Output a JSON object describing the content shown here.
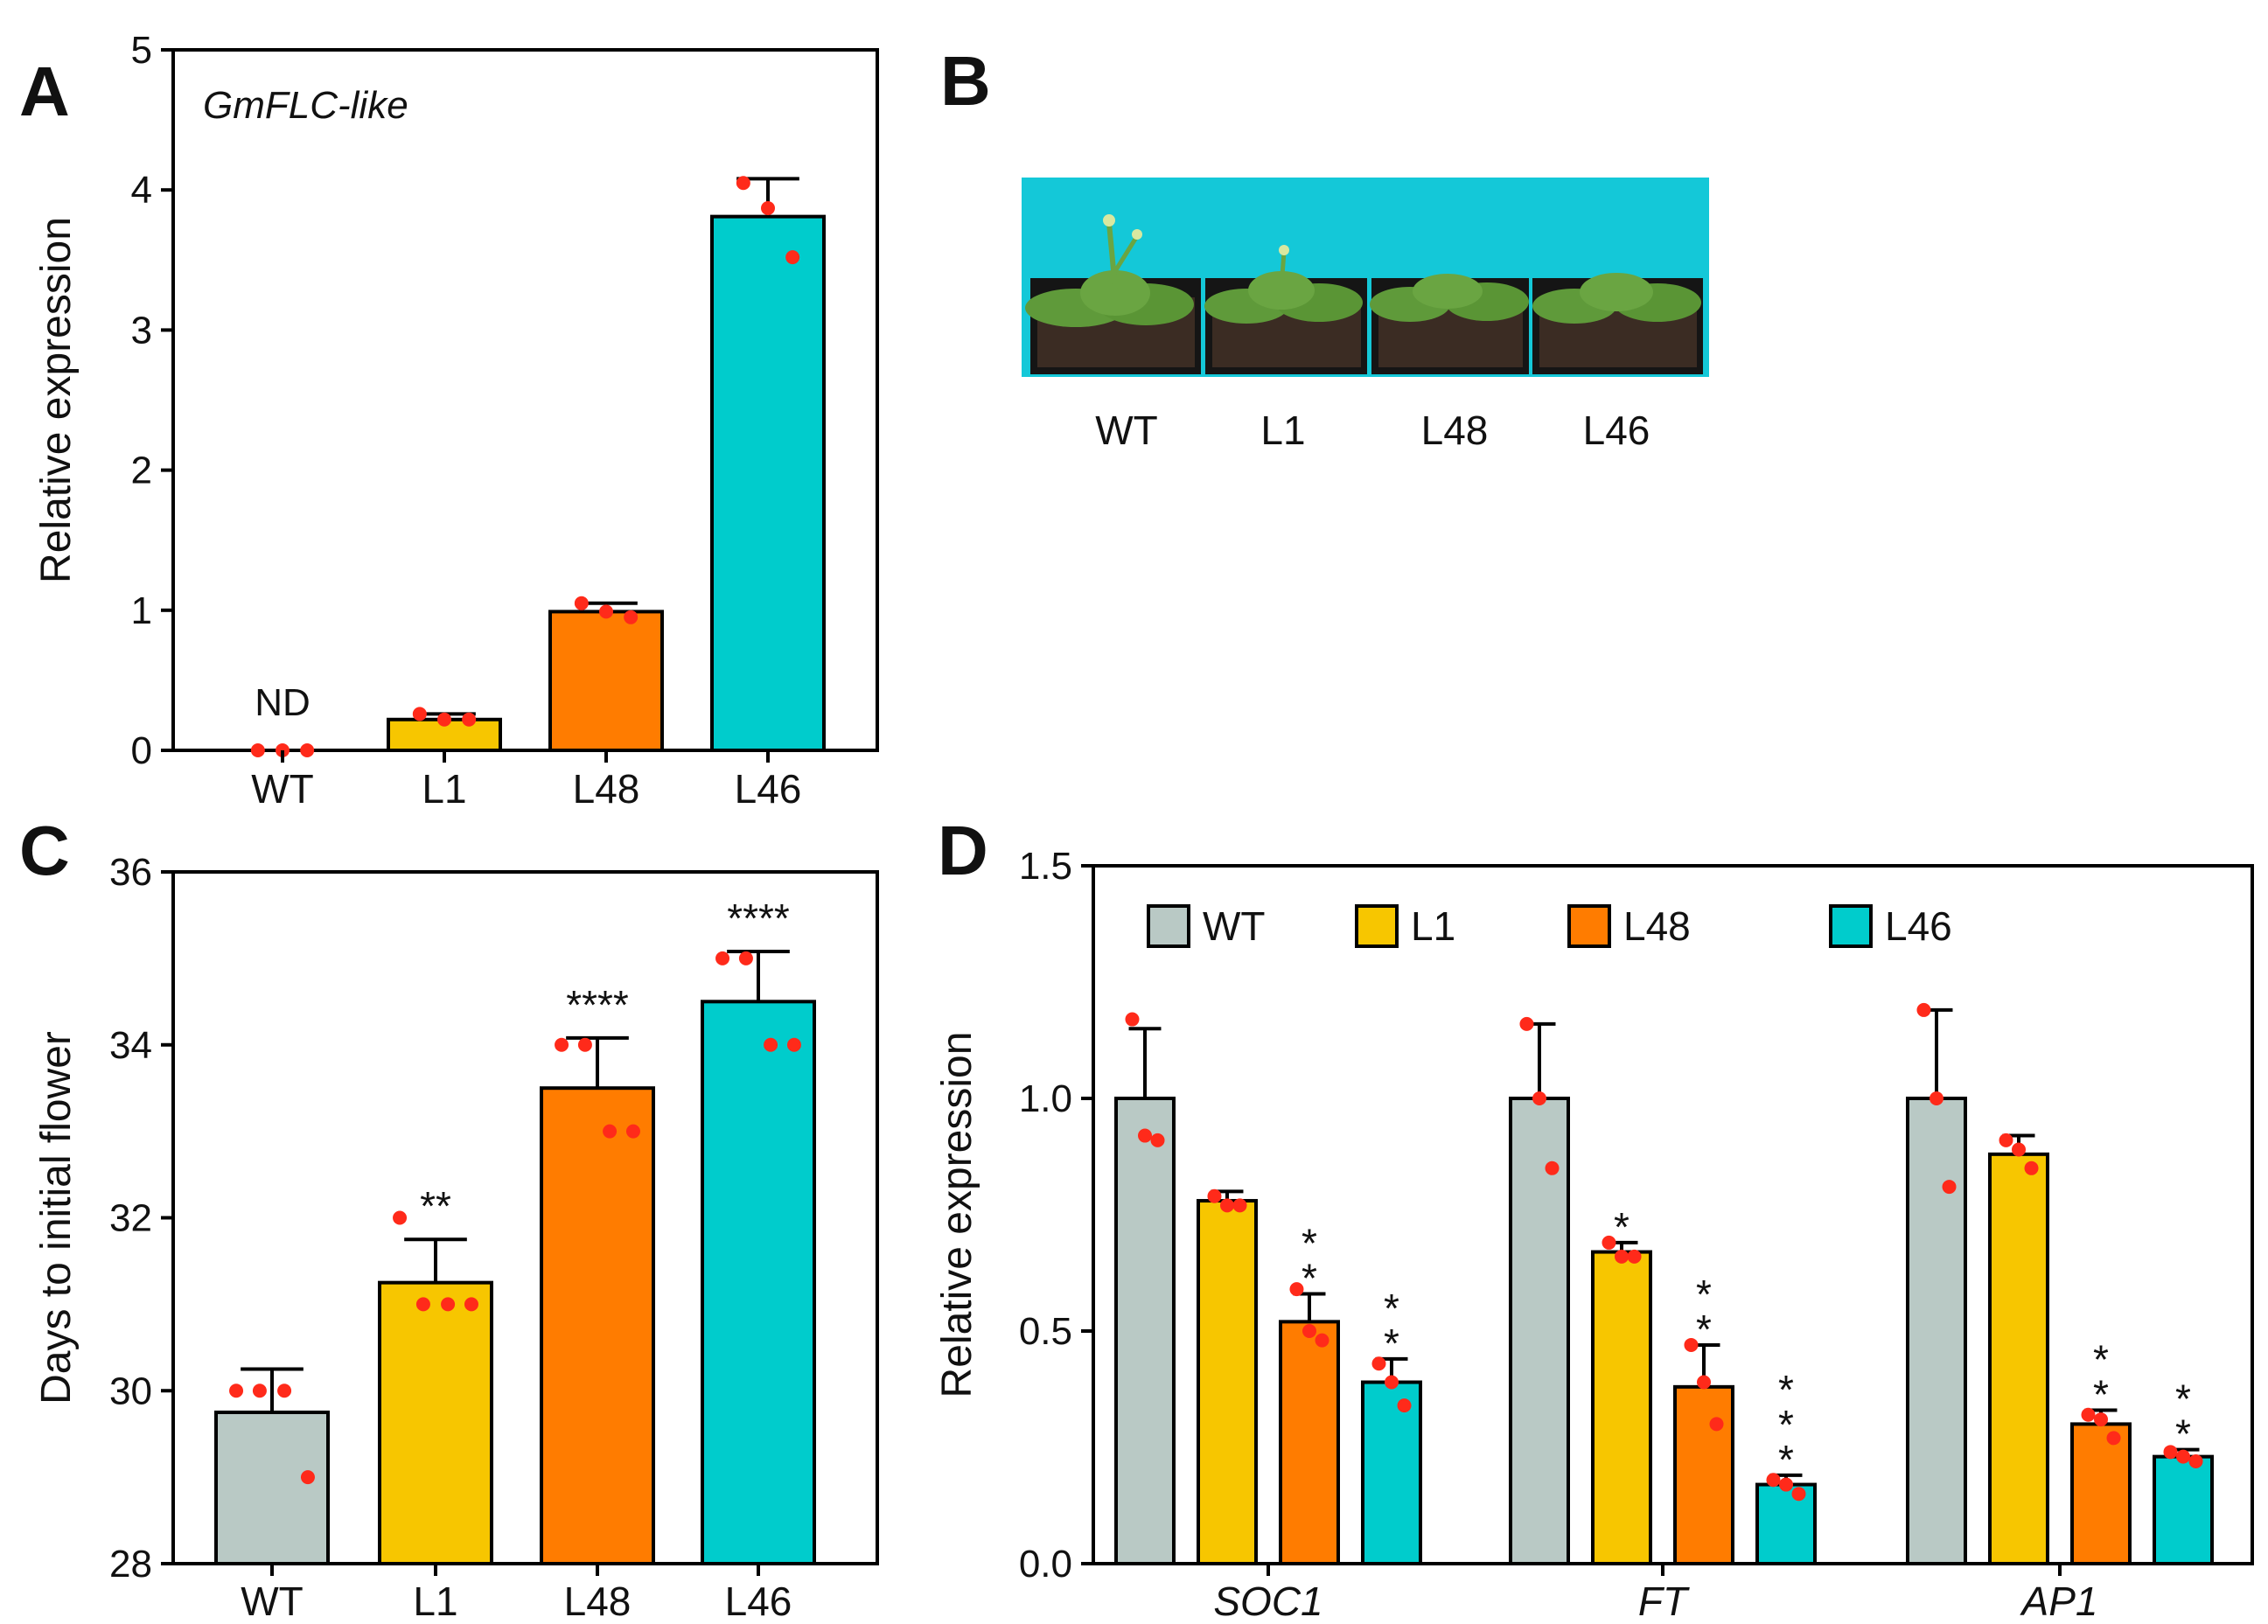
{
  "colors": {
    "WT": "#b9c9c5",
    "L1": "#f7c600",
    "L48": "#ff7c00",
    "L46": "#00cccc",
    "dot": "#ff2a1a",
    "axis": "#000000",
    "photo_bg": "#14c8d8",
    "soil": "#3b2c23",
    "pot": "#141414",
    "leaf": "#5f9a3a",
    "leaf_dark": "#3f7a28"
  },
  "panels": {
    "A": {
      "letter": "A"
    },
    "B": {
      "letter": "B",
      "labels": [
        "WT",
        "L1",
        "L48",
        "L46"
      ]
    },
    "C": {
      "letter": "C"
    },
    "D": {
      "letter": "D"
    }
  },
  "chart_data": [
    {
      "id": "A",
      "type": "bar",
      "title": "GmFLC-like",
      "xlabel": "",
      "ylabel": "Relative expression",
      "ylim": [
        0,
        5
      ],
      "yticks": [
        0,
        1,
        2,
        3,
        4,
        5
      ],
      "yticklabels": [
        "0",
        "1",
        "2",
        "3",
        "4",
        "5"
      ],
      "categories": [
        "WT",
        "L1",
        "L48",
        "L46"
      ],
      "values": [
        0,
        0.22,
        0.99,
        3.81
      ],
      "errors": [
        0,
        0.04,
        0.06,
        0.27
      ],
      "points": [
        [
          0,
          0,
          0
        ],
        [
          0.26,
          0.22,
          0.22
        ],
        [
          1.05,
          0.99,
          0.95
        ],
        [
          4.05,
          3.87,
          3.52
        ]
      ],
      "annotations": [
        "ND",
        "",
        "",
        ""
      ]
    },
    {
      "id": "C",
      "type": "bar",
      "title": "",
      "xlabel": "",
      "ylabel": "Days to initial flower",
      "ylim": [
        28,
        36
      ],
      "yticks": [
        28,
        30,
        32,
        34,
        36
      ],
      "yticklabels": [
        "28",
        "30",
        "32",
        "34",
        "36"
      ],
      "categories": [
        "WT",
        "L1",
        "L48",
        "L46"
      ],
      "values": [
        29.75,
        31.25,
        33.5,
        34.5
      ],
      "errors": [
        0.5,
        0.5,
        0.58,
        0.58
      ],
      "points": [
        [
          30,
          30,
          30,
          29
        ],
        [
          32,
          31,
          31,
          31
        ],
        [
          34,
          34,
          33,
          33
        ],
        [
          35,
          35,
          34,
          34
        ]
      ],
      "annotations": [
        "",
        "**",
        "****",
        "****"
      ]
    },
    {
      "id": "D",
      "type": "bar",
      "title": "",
      "xlabel": "",
      "ylabel": "Relative expression",
      "ylim": [
        0,
        1.5
      ],
      "yticks": [
        0,
        0.5,
        1.0,
        1.5
      ],
      "yticklabels": [
        "0.0",
        "0.5",
        "1.0",
        "1.5"
      ],
      "categories": [
        "SOC1",
        "FT",
        "AP1"
      ],
      "legend": [
        "WT",
        "L1",
        "L48",
        "L46"
      ],
      "series": [
        {
          "name": "WT",
          "values": [
            1.0,
            1.0,
            1.0
          ],
          "errors": [
            0.15,
            0.16,
            0.19
          ],
          "points": [
            [
              1.17,
              0.92,
              0.91
            ],
            [
              1.16,
              1.0,
              0.85
            ],
            [
              1.19,
              1.0,
              0.81
            ]
          ],
          "annotations": [
            "",
            "",
            ""
          ]
        },
        {
          "name": "L1",
          "values": [
            0.78,
            0.67,
            0.88
          ],
          "errors": [
            0.02,
            0.02,
            0.04
          ],
          "points": [
            [
              0.79,
              0.77,
              0.77
            ],
            [
              0.69,
              0.66,
              0.66
            ],
            [
              0.91,
              0.89,
              0.85
            ]
          ],
          "annotations": [
            "",
            "*",
            ""
          ]
        },
        {
          "name": "L48",
          "values": [
            0.52,
            0.38,
            0.3
          ],
          "errors": [
            0.06,
            0.09,
            0.03
          ],
          "points": [
            [
              0.59,
              0.5,
              0.48
            ],
            [
              0.47,
              0.39,
              0.3
            ],
            [
              0.32,
              0.31,
              0.27
            ]
          ],
          "annotations": [
            "**",
            "**",
            "**"
          ]
        },
        {
          "name": "L46",
          "values": [
            0.39,
            0.17,
            0.23
          ],
          "errors": [
            0.05,
            0.02,
            0.015
          ],
          "points": [
            [
              0.43,
              0.39,
              0.34
            ],
            [
              0.18,
              0.17,
              0.15
            ],
            [
              0.24,
              0.23,
              0.22
            ]
          ],
          "annotations": [
            "**",
            "***",
            "**"
          ]
        }
      ]
    }
  ]
}
